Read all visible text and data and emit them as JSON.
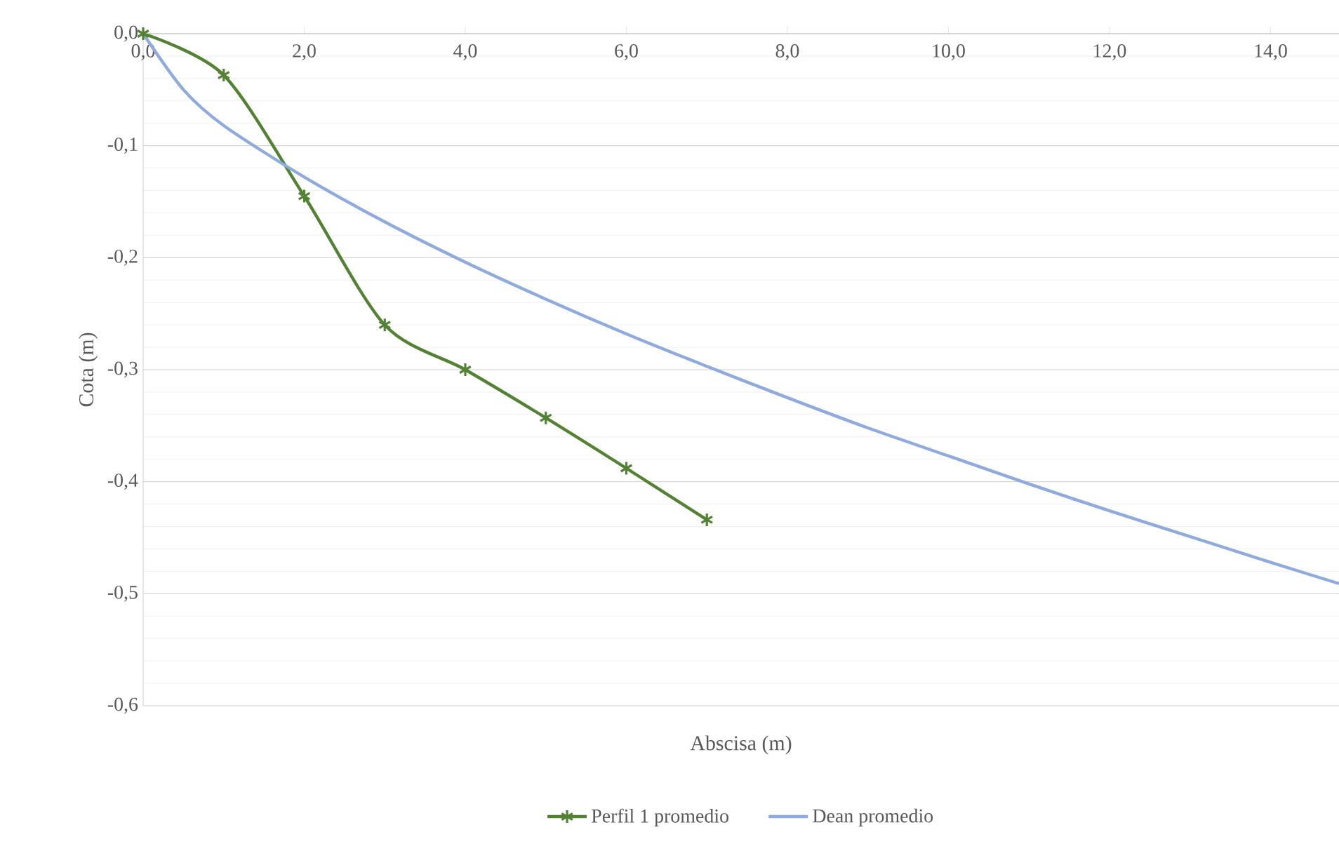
{
  "chart_data": {
    "type": "line",
    "xlabel": "Abscisa (m)",
    "ylabel": "Cota (m)",
    "xlim": [
      0,
      14.85
    ],
    "ylim": [
      -0.6,
      0
    ],
    "xticks": [
      {
        "value": 0,
        "label": "0,0"
      },
      {
        "value": 2,
        "label": "2,0"
      },
      {
        "value": 4,
        "label": "4,0"
      },
      {
        "value": 6,
        "label": "6,0"
      },
      {
        "value": 8,
        "label": "8,0"
      },
      {
        "value": 10,
        "label": "10,0"
      },
      {
        "value": 12,
        "label": "12,0"
      },
      {
        "value": 14,
        "label": "14,0"
      }
    ],
    "yticks": [
      {
        "value": 0,
        "label": "0,0"
      },
      {
        "value": -0.1,
        "label": "-0,1"
      },
      {
        "value": -0.2,
        "label": "-0,2"
      },
      {
        "value": -0.3,
        "label": "-0,3"
      },
      {
        "value": -0.4,
        "label": "-0,4"
      },
      {
        "value": -0.5,
        "label": "-0,5"
      },
      {
        "value": -0.6,
        "label": "-0,6"
      }
    ],
    "grid": "y",
    "legend": "bottom",
    "series": [
      {
        "name": "Perfil 1 promedio",
        "color": "#548235",
        "marker": "cross",
        "x": [
          0,
          1,
          2,
          3,
          4,
          5,
          6,
          7
        ],
        "values": [
          0,
          -0.037,
          -0.145,
          -0.26,
          -0.3,
          -0.343,
          -0.388,
          -0.434
        ]
      },
      {
        "name": "Dean promedio",
        "color": "#8faadc",
        "marker": "none",
        "x": [
          0,
          0.5,
          1,
          2,
          3,
          4,
          5,
          6,
          7,
          8,
          9,
          10,
          11,
          12,
          13,
          14,
          14.85
        ],
        "values": [
          0,
          -0.05,
          -0.082,
          -0.128,
          -0.168,
          -0.204,
          -0.237,
          -0.268,
          -0.297,
          -0.325,
          -0.352,
          -0.377,
          -0.402,
          -0.426,
          -0.449,
          -0.472,
          -0.491
        ]
      }
    ]
  }
}
